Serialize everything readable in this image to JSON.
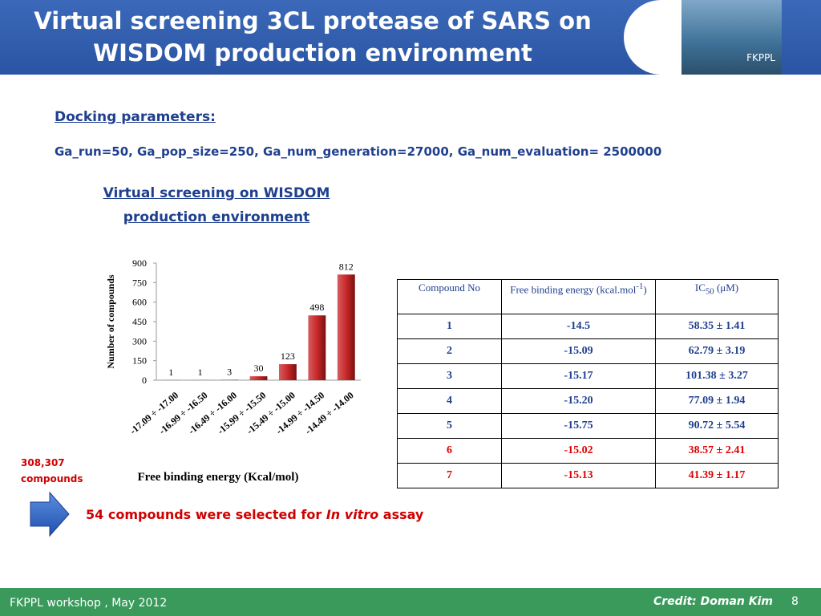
{
  "header": {
    "title": "Virtual screening 3CL protease of SARS on WISDOM production environment",
    "logo_label": "FKPPL"
  },
  "docking": {
    "heading": "Docking parameters:",
    "params": "Ga_run=50,  Ga_pop_size=250, Ga_num_generation=27000, Ga_num_evaluation= 2500000"
  },
  "chart_data": {
    "type": "bar",
    "title": "Virtual screening on WISDOM production environment",
    "categories": [
      "-17.09 ÷ -17.00",
      "-16.99 ÷ -16.50",
      "-16.49 ÷ -16.00",
      "-15.99 ÷ -15.50",
      "-15.49 ÷ -15.00",
      "-14.99 ÷ -14.50",
      "-14.49 ÷ -14.00"
    ],
    "values": [
      1,
      1,
      3,
      30,
      123,
      498,
      812
    ],
    "color": "#c8282a",
    "ylim": [
      0,
      900
    ],
    "yticks": [
      0,
      150,
      300,
      450,
      600,
      750,
      900
    ],
    "ylabel": "Number of compounds",
    "xlabel": "Free binding energy (Kcal/mol)",
    "grid": false
  },
  "side_note": "308,307 compounds",
  "table": {
    "header": [
      {
        "text": "Compound No"
      },
      {
        "text": "Free binding energy (kcal.mol",
        "sup": "-1",
        "after": ")"
      },
      {
        "text": "IC",
        "sub": "50",
        "after": " (μM)"
      }
    ],
    "rows": [
      {
        "cells": [
          "1",
          "-14.5",
          "58.35 ± 1.41"
        ]
      },
      {
        "cells": [
          "2",
          "-15.09",
          "62.79 ± 3.19"
        ]
      },
      {
        "cells": [
          "3",
          "-15.17",
          "101.38 ± 3.27"
        ]
      },
      {
        "cells": [
          "4",
          "-15.20",
          "77.09 ± 1.94"
        ]
      },
      {
        "cells": [
          "5",
          "-15.75",
          "90.72 ± 5.54"
        ]
      },
      {
        "cells": [
          "6",
          "-15.02",
          "38.57 ± 2.41"
        ],
        "color": "#e00000"
      },
      {
        "cells": [
          "7",
          "-15.13",
          "41.39 ± 1.17"
        ],
        "color": "#e00000"
      }
    ]
  },
  "selection": {
    "before": "54 compounds were selected for ",
    "italic": "In vitro",
    "after": " assay"
  },
  "footer": {
    "event": "FKPPL workshop , May 2012",
    "credit": "Credit: Doman Kim",
    "page": "8"
  }
}
